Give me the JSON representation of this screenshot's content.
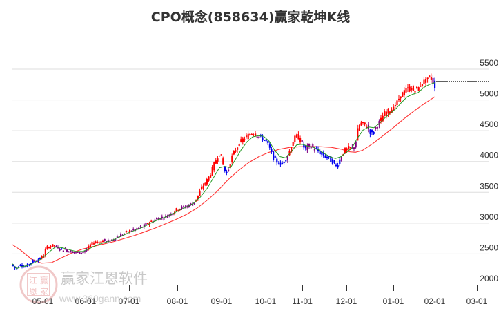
{
  "title": "CPO概念(858634)赢家乾坤K线",
  "watermark": {
    "name": "赢家江恩软件",
    "url": "www.360gann.com",
    "seal": [
      "江",
      "赢",
      "恩",
      "家"
    ]
  },
  "colors": {
    "up": "#ff0000",
    "down": "#0000ee",
    "neutral": "#800080",
    "ma_short": "#229922",
    "ma_long": "#ff3333",
    "grid": "#dddddd",
    "axis": "#333333"
  },
  "chart_data": {
    "type": "candlestick",
    "title": "CPO概念(858634)赢家乾坤K线",
    "xlabel": "",
    "ylabel": "",
    "ylim": [
      2000,
      5600
    ],
    "y_ticks": [
      2000,
      2500,
      3000,
      3500,
      4000,
      4500,
      5000,
      5500
    ],
    "x_ticks": [
      "05-01",
      "06-01",
      "07-01",
      "08-01",
      "09-01",
      "10-01",
      "11-01",
      "12-01",
      "01-01",
      "02-01",
      "03-01"
    ],
    "grid": true,
    "legend": "none",
    "series": [
      {
        "name": "price_path",
        "points": [
          [
            18,
            2300
          ],
          [
            22,
            2250
          ],
          [
            28,
            2340
          ],
          [
            34,
            2280
          ],
          [
            40,
            2330
          ],
          [
            46,
            2380
          ],
          [
            52,
            2400
          ],
          [
            58,
            2430
          ],
          [
            62,
            2480
          ],
          [
            66,
            2600
          ],
          [
            70,
            2620
          ],
          [
            76,
            2640
          ],
          [
            82,
            2600
          ],
          [
            88,
            2570
          ],
          [
            94,
            2570
          ],
          [
            100,
            2540
          ],
          [
            106,
            2530
          ],
          [
            112,
            2520
          ],
          [
            118,
            2530
          ],
          [
            124,
            2560
          ],
          [
            130,
            2650
          ],
          [
            136,
            2700
          ],
          [
            142,
            2690
          ],
          [
            148,
            2720
          ],
          [
            154,
            2700
          ],
          [
            160,
            2720
          ],
          [
            166,
            2760
          ],
          [
            172,
            2800
          ],
          [
            178,
            2820
          ],
          [
            184,
            2870
          ],
          [
            190,
            2880
          ],
          [
            196,
            2900
          ],
          [
            202,
            2930
          ],
          [
            208,
            2960
          ],
          [
            214,
            3010
          ],
          [
            220,
            3040
          ],
          [
            226,
            3070
          ],
          [
            232,
            3090
          ],
          [
            238,
            3100
          ],
          [
            244,
            3140
          ],
          [
            250,
            3180
          ],
          [
            256,
            3230
          ],
          [
            262,
            3250
          ],
          [
            268,
            3270
          ],
          [
            274,
            3300
          ],
          [
            280,
            3330
          ],
          [
            286,
            3450
          ],
          [
            290,
            3560
          ],
          [
            294,
            3620
          ],
          [
            298,
            3680
          ],
          [
            302,
            3760
          ],
          [
            306,
            3860
          ],
          [
            310,
            3980
          ],
          [
            314,
            4080
          ],
          [
            318,
            4150
          ],
          [
            322,
            3950
          ],
          [
            326,
            3800
          ],
          [
            330,
            3880
          ],
          [
            334,
            4050
          ],
          [
            338,
            4150
          ],
          [
            342,
            4230
          ],
          [
            346,
            4300
          ],
          [
            350,
            4350
          ],
          [
            354,
            4380
          ],
          [
            358,
            4420
          ],
          [
            362,
            4460
          ],
          [
            366,
            4470
          ],
          [
            370,
            4430
          ],
          [
            374,
            4400
          ],
          [
            378,
            4380
          ],
          [
            382,
            4350
          ],
          [
            386,
            4300
          ],
          [
            390,
            4200
          ],
          [
            394,
            4080
          ],
          [
            398,
            4020
          ],
          [
            402,
            3980
          ],
          [
            406,
            3950
          ],
          [
            410,
            4000
          ],
          [
            414,
            4060
          ],
          [
            418,
            4150
          ],
          [
            422,
            4300
          ],
          [
            426,
            4380
          ],
          [
            430,
            4420
          ],
          [
            434,
            4350
          ],
          [
            438,
            4250
          ],
          [
            442,
            4200
          ],
          [
            446,
            4250
          ],
          [
            450,
            4260
          ],
          [
            454,
            4200
          ],
          [
            458,
            4180
          ],
          [
            462,
            4150
          ],
          [
            466,
            4100
          ],
          [
            470,
            4080
          ],
          [
            474,
            4070
          ],
          [
            478,
            4020
          ],
          [
            482,
            3980
          ],
          [
            486,
            3920
          ],
          [
            490,
            4000
          ],
          [
            494,
            4100
          ],
          [
            498,
            4180
          ],
          [
            502,
            4200
          ],
          [
            506,
            4230
          ],
          [
            510,
            4200
          ],
          [
            514,
            4300
          ],
          [
            518,
            4560
          ],
          [
            522,
            4620
          ],
          [
            526,
            4600
          ],
          [
            530,
            4580
          ],
          [
            534,
            4500
          ],
          [
            538,
            4450
          ],
          [
            542,
            4530
          ],
          [
            546,
            4600
          ],
          [
            550,
            4650
          ],
          [
            554,
            4750
          ],
          [
            558,
            4800
          ],
          [
            562,
            4820
          ],
          [
            566,
            4850
          ],
          [
            570,
            4880
          ],
          [
            574,
            4950
          ],
          [
            578,
            5050
          ],
          [
            582,
            5100
          ],
          [
            586,
            5150
          ],
          [
            590,
            5180
          ],
          [
            594,
            5200
          ],
          [
            598,
            5150
          ],
          [
            602,
            5180
          ],
          [
            606,
            5200
          ],
          [
            610,
            5280
          ],
          [
            614,
            5300
          ],
          [
            618,
            5330
          ],
          [
            622,
            5380
          ],
          [
            626,
            5300
          ],
          [
            630,
            5200
          ]
        ]
      },
      {
        "name": "ma_short",
        "color": "#229922",
        "points": [
          [
            18,
            2340
          ],
          [
            24,
            2260
          ],
          [
            30,
            2290
          ],
          [
            40,
            2310
          ],
          [
            50,
            2360
          ],
          [
            60,
            2420
          ],
          [
            70,
            2520
          ],
          [
            80,
            2610
          ],
          [
            90,
            2600
          ],
          [
            100,
            2570
          ],
          [
            110,
            2540
          ],
          [
            120,
            2540
          ],
          [
            130,
            2590
          ],
          [
            140,
            2640
          ],
          [
            150,
            2680
          ],
          [
            160,
            2710
          ],
          [
            170,
            2760
          ],
          [
            180,
            2810
          ],
          [
            190,
            2860
          ],
          [
            200,
            2900
          ],
          [
            210,
            2950
          ],
          [
            220,
            3010
          ],
          [
            230,
            3060
          ],
          [
            240,
            3100
          ],
          [
            250,
            3150
          ],
          [
            260,
            3210
          ],
          [
            270,
            3260
          ],
          [
            280,
            3320
          ],
          [
            290,
            3420
          ],
          [
            300,
            3560
          ],
          [
            310,
            3750
          ],
          [
            318,
            3900
          ],
          [
            326,
            3920
          ],
          [
            334,
            3900
          ],
          [
            342,
            4050
          ],
          [
            350,
            4200
          ],
          [
            358,
            4320
          ],
          [
            366,
            4400
          ],
          [
            374,
            4420
          ],
          [
            382,
            4410
          ],
          [
            390,
            4330
          ],
          [
            398,
            4180
          ],
          [
            406,
            4080
          ],
          [
            414,
            4060
          ],
          [
            422,
            4160
          ],
          [
            430,
            4270
          ],
          [
            438,
            4280
          ],
          [
            446,
            4250
          ],
          [
            454,
            4230
          ],
          [
            462,
            4190
          ],
          [
            470,
            4130
          ],
          [
            478,
            4080
          ],
          [
            486,
            4050
          ],
          [
            494,
            4080
          ],
          [
            502,
            4150
          ],
          [
            510,
            4220
          ],
          [
            518,
            4380
          ],
          [
            526,
            4510
          ],
          [
            534,
            4560
          ],
          [
            542,
            4550
          ],
          [
            550,
            4620
          ],
          [
            558,
            4710
          ],
          [
            566,
            4790
          ],
          [
            574,
            4860
          ],
          [
            582,
            4960
          ],
          [
            590,
            5050
          ],
          [
            598,
            5090
          ],
          [
            606,
            5120
          ],
          [
            614,
            5200
          ],
          [
            622,
            5250
          ],
          [
            630,
            5280
          ]
        ]
      },
      {
        "name": "ma_long",
        "color": "#ff3333",
        "points": [
          [
            18,
            2650
          ],
          [
            30,
            2560
          ],
          [
            45,
            2420
          ],
          [
            60,
            2350
          ],
          [
            75,
            2360
          ],
          [
            90,
            2440
          ],
          [
            105,
            2520
          ],
          [
            120,
            2580
          ],
          [
            135,
            2620
          ],
          [
            150,
            2660
          ],
          [
            165,
            2700
          ],
          [
            180,
            2750
          ],
          [
            195,
            2800
          ],
          [
            210,
            2860
          ],
          [
            225,
            2920
          ],
          [
            240,
            2990
          ],
          [
            255,
            3060
          ],
          [
            270,
            3140
          ],
          [
            285,
            3240
          ],
          [
            300,
            3370
          ],
          [
            315,
            3520
          ],
          [
            330,
            3700
          ],
          [
            345,
            3850
          ],
          [
            360,
            3980
          ],
          [
            375,
            4080
          ],
          [
            390,
            4150
          ],
          [
            405,
            4200
          ],
          [
            420,
            4230
          ],
          [
            435,
            4240
          ],
          [
            450,
            4245
          ],
          [
            465,
            4240
          ],
          [
            480,
            4230
          ],
          [
            495,
            4200
          ],
          [
            505,
            4160
          ],
          [
            515,
            4150
          ],
          [
            525,
            4180
          ],
          [
            540,
            4290
          ],
          [
            555,
            4420
          ],
          [
            570,
            4550
          ],
          [
            585,
            4690
          ],
          [
            600,
            4820
          ],
          [
            615,
            4940
          ],
          [
            630,
            5050
          ]
        ]
      }
    ],
    "last_price_line": {
      "value": 5300,
      "x_from": 632,
      "x_to": 708
    }
  }
}
